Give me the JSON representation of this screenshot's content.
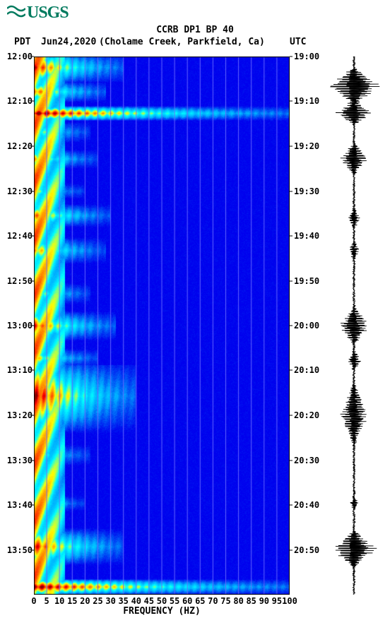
{
  "logo_text": "USGS",
  "title": "CCRB DP1 BP 40",
  "timezone_left": "PDT",
  "date": "Jun24,2020",
  "location": "(Cholame Creek, Parkfield, Ca)",
  "timezone_right": "UTC",
  "x_axis_label": "FREQUENCY (HZ)",
  "spectrogram": {
    "type": "spectrogram",
    "xlim": [
      0,
      100
    ],
    "time_range_pdt": [
      "12:00",
      "14:00"
    ],
    "time_range_utc": [
      "19:00",
      "21:00"
    ],
    "background_color": "#0000ee",
    "grid_color": "#6666ff",
    "colormap": [
      "#0000ee",
      "#00aaff",
      "#00ffff",
      "#ffff00",
      "#ff8800",
      "#ff0000",
      "#880000"
    ],
    "x_ticks": [
      0,
      5,
      10,
      15,
      20,
      25,
      30,
      35,
      40,
      45,
      50,
      55,
      60,
      65,
      70,
      75,
      80,
      85,
      90,
      95,
      100
    ],
    "low_freq_band_hz": [
      0,
      12
    ],
    "events": [
      {
        "t": 0.02,
        "dur": 0.03,
        "maxhz": 35,
        "intensity": 0.85
      },
      {
        "t": 0.065,
        "dur": 0.02,
        "maxhz": 28,
        "intensity": 0.75
      },
      {
        "t": 0.105,
        "dur": 0.014,
        "maxhz": 100,
        "intensity": 1.0
      },
      {
        "t": 0.14,
        "dur": 0.02,
        "maxhz": 22,
        "intensity": 0.55
      },
      {
        "t": 0.19,
        "dur": 0.018,
        "maxhz": 25,
        "intensity": 0.6
      },
      {
        "t": 0.25,
        "dur": 0.015,
        "maxhz": 20,
        "intensity": 0.5
      },
      {
        "t": 0.295,
        "dur": 0.022,
        "maxhz": 30,
        "intensity": 0.7
      },
      {
        "t": 0.36,
        "dur": 0.025,
        "maxhz": 28,
        "intensity": 0.65
      },
      {
        "t": 0.44,
        "dur": 0.02,
        "maxhz": 22,
        "intensity": 0.55
      },
      {
        "t": 0.5,
        "dur": 0.028,
        "maxhz": 32,
        "intensity": 0.8
      },
      {
        "t": 0.56,
        "dur": 0.018,
        "maxhz": 25,
        "intensity": 0.6
      },
      {
        "t": 0.63,
        "dur": 0.07,
        "maxhz": 40,
        "intensity": 0.92
      },
      {
        "t": 0.74,
        "dur": 0.02,
        "maxhz": 22,
        "intensity": 0.5
      },
      {
        "t": 0.83,
        "dur": 0.015,
        "maxhz": 20,
        "intensity": 0.48
      },
      {
        "t": 0.91,
        "dur": 0.035,
        "maxhz": 35,
        "intensity": 0.85
      },
      {
        "t": 0.985,
        "dur": 0.015,
        "maxhz": 100,
        "intensity": 1.0
      }
    ]
  },
  "left_time_ticks": [
    {
      "pos": 0.0,
      "label": "12:00"
    },
    {
      "pos": 0.083,
      "label": "12:10"
    },
    {
      "pos": 0.167,
      "label": "12:20"
    },
    {
      "pos": 0.25,
      "label": "12:30"
    },
    {
      "pos": 0.333,
      "label": "12:40"
    },
    {
      "pos": 0.417,
      "label": "12:50"
    },
    {
      "pos": 0.5,
      "label": "13:00"
    },
    {
      "pos": 0.583,
      "label": "13:10"
    },
    {
      "pos": 0.667,
      "label": "13:20"
    },
    {
      "pos": 0.75,
      "label": "13:30"
    },
    {
      "pos": 0.833,
      "label": "13:40"
    },
    {
      "pos": 0.917,
      "label": "13:50"
    }
  ],
  "right_time_ticks": [
    {
      "pos": 0.0,
      "label": "19:00"
    },
    {
      "pos": 0.083,
      "label": "19:10"
    },
    {
      "pos": 0.167,
      "label": "19:20"
    },
    {
      "pos": 0.25,
      "label": "19:30"
    },
    {
      "pos": 0.333,
      "label": "19:40"
    },
    {
      "pos": 0.417,
      "label": "19:50"
    },
    {
      "pos": 0.5,
      "label": "20:00"
    },
    {
      "pos": 0.583,
      "label": "20:10"
    },
    {
      "pos": 0.667,
      "label": "20:20"
    },
    {
      "pos": 0.75,
      "label": "20:30"
    },
    {
      "pos": 0.833,
      "label": "20:40"
    },
    {
      "pos": 0.917,
      "label": "20:50"
    }
  ],
  "waveform": {
    "baseline_noise": 0.04,
    "color": "#000000",
    "events": [
      {
        "t": 0.055,
        "amp": 1.0,
        "dur": 0.035
      },
      {
        "t": 0.105,
        "amp": 0.75,
        "dur": 0.022
      },
      {
        "t": 0.19,
        "amp": 0.55,
        "dur": 0.03
      },
      {
        "t": 0.3,
        "amp": 0.25,
        "dur": 0.02
      },
      {
        "t": 0.36,
        "amp": 0.2,
        "dur": 0.02
      },
      {
        "t": 0.5,
        "amp": 0.6,
        "dur": 0.035
      },
      {
        "t": 0.565,
        "amp": 0.25,
        "dur": 0.02
      },
      {
        "t": 0.665,
        "amp": 0.55,
        "dur": 0.06
      },
      {
        "t": 0.83,
        "amp": 0.15,
        "dur": 0.015
      },
      {
        "t": 0.915,
        "amp": 0.85,
        "dur": 0.035
      }
    ]
  }
}
